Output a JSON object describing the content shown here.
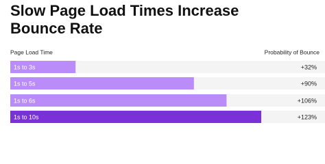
{
  "chart_data": {
    "type": "bar",
    "orientation": "horizontal",
    "title": "Slow Page Load Times Increase Bounce Rate",
    "category_header": "Page Load Time",
    "value_header": "Probability of Bounce",
    "categories": [
      "1s to 3s",
      "1s to 5s",
      "1s to 6s",
      "1s to 10s"
    ],
    "values": [
      32,
      90,
      106,
      123
    ],
    "value_labels": [
      "+32%",
      "+90%",
      "+106%",
      "+123%"
    ],
    "colors": [
      "#b98cf7",
      "#b98cf7",
      "#b98cf7",
      "#7a32d8"
    ]
  }
}
